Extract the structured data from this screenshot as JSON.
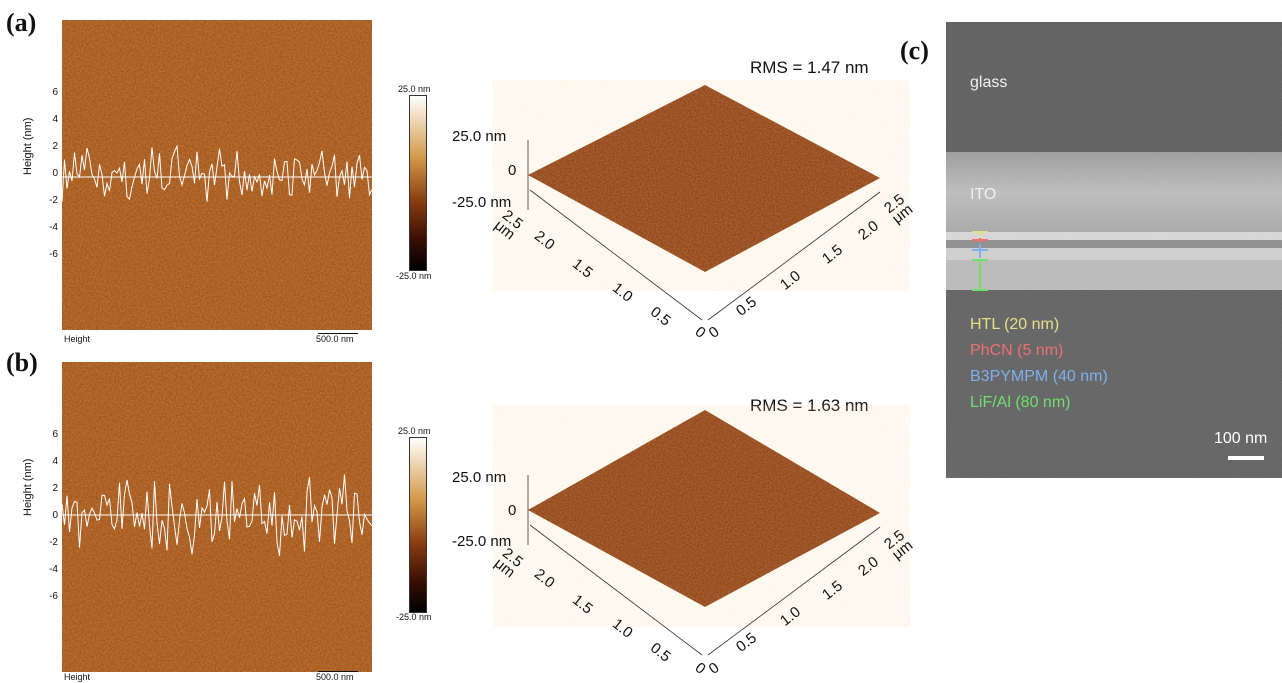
{
  "panels": {
    "a": {
      "label": "(a)",
      "yaxis_label": "Height (nm)",
      "yticks": [
        "6",
        "4",
        "2",
        "0",
        "-2",
        "-4",
        "-6"
      ],
      "footer_left": "Height",
      "footer_right": "500.0 nm",
      "colorbar_top": "25.0 nm",
      "colorbar_bottom": "-25.0 nm",
      "rms": "RMS = 1.47 nm",
      "z_top": "25.0 nm",
      "z_mid": "0",
      "z_bottom": "-25.0 nm",
      "axis_unit_left": "2.5\nμm",
      "x_ticks_left": [
        "2.0",
        "1.5",
        "1.0",
        "0.5",
        "0"
      ],
      "x_ticks_right": [
        "0",
        "0.5",
        "1.0",
        "1.5",
        "2.0"
      ],
      "axis_unit_right": "2.5\nμm"
    },
    "b": {
      "label": "(b)",
      "yaxis_label": "Height (nm)",
      "yticks": [
        "6",
        "4",
        "2",
        "0",
        "-2",
        "-4",
        "-6"
      ],
      "footer_left": "Height",
      "footer_right": "500.0 nm",
      "colorbar_top": "25.0 nm",
      "colorbar_bottom": "-25.0 nm",
      "rms": "RMS = 1.63 nm",
      "z_top": "25.0 nm",
      "z_mid": "0",
      "z_bottom": "-25.0 nm",
      "axis_unit_left": "2.5\nμm",
      "x_ticks_left": [
        "2.0",
        "1.5",
        "1.0",
        "0.5",
        "0"
      ],
      "x_ticks_right": [
        "0",
        "0.5",
        "1.0",
        "1.5",
        "2.0"
      ],
      "axis_unit_right": "2.5\nμm"
    },
    "c": {
      "label": "(c)",
      "glass": "glass",
      "ito": "ITO",
      "legend": [
        {
          "text": "HTL (20 nm)",
          "color": "#e6e08a"
        },
        {
          "text": "PhCN (5 nm)",
          "color": "#f07070"
        },
        {
          "text": "B3PYMPM (40 nm)",
          "color": "#7fb0f0"
        },
        {
          "text": "LiF/Al (80 nm)",
          "color": "#6fe06f"
        }
      ],
      "scalebar": "100 nm"
    }
  },
  "colors": {
    "afm_base": "#9a4a14",
    "profile_line": "#ffffff",
    "surface3d": "#8a3a10"
  }
}
